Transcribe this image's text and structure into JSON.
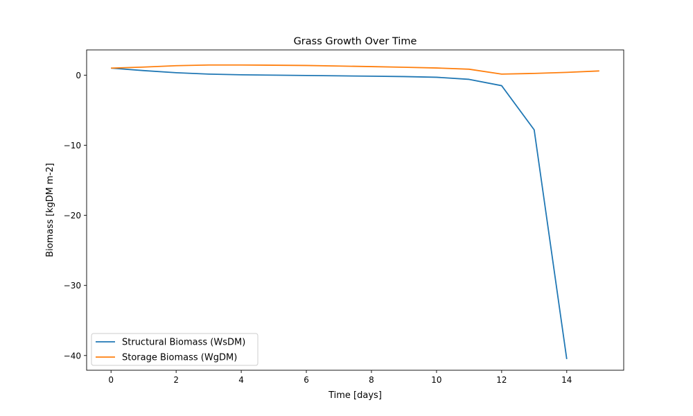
{
  "chart_data": {
    "type": "line",
    "title": "Grass Growth Over Time",
    "xlabel": "Time [days]",
    "ylabel": "Biomass [kgDM m-2]",
    "xlim": [
      -0.75,
      15.75
    ],
    "ylim": [
      -42.1,
      3.6
    ],
    "xticks": [
      0,
      2,
      4,
      6,
      8,
      10,
      12,
      14
    ],
    "yticks": [
      0,
      -10,
      -20,
      -30,
      -40
    ],
    "xtick_labels": [
      "0",
      "2",
      "4",
      "6",
      "8",
      "10",
      "12",
      "14"
    ],
    "ytick_labels": [
      "0",
      "−10",
      "−20",
      "−30",
      "−40"
    ],
    "grid": false,
    "legend_position": "lower-left",
    "series": [
      {
        "name": "Structural Biomass (WsDM)",
        "color": "#1f77b4",
        "x": [
          0,
          1,
          2,
          3,
          4,
          5,
          6,
          7,
          8,
          9,
          10,
          11,
          12,
          13,
          14
        ],
        "y": [
          1.0,
          0.65,
          0.35,
          0.15,
          0.05,
          0.0,
          -0.05,
          -0.1,
          -0.15,
          -0.2,
          -0.3,
          -0.6,
          -1.5,
          -7.8,
          -40.5
        ]
      },
      {
        "name": "Storage Biomass (WgDM)",
        "color": "#ff7f0e",
        "x": [
          0,
          1,
          2,
          3,
          4,
          5,
          6,
          7,
          8,
          9,
          10,
          11,
          12,
          13,
          14,
          15
        ],
        "y": [
          1.0,
          1.15,
          1.35,
          1.45,
          1.45,
          1.42,
          1.38,
          1.3,
          1.22,
          1.13,
          1.02,
          0.85,
          0.15,
          0.25,
          0.4,
          0.6
        ]
      }
    ]
  }
}
